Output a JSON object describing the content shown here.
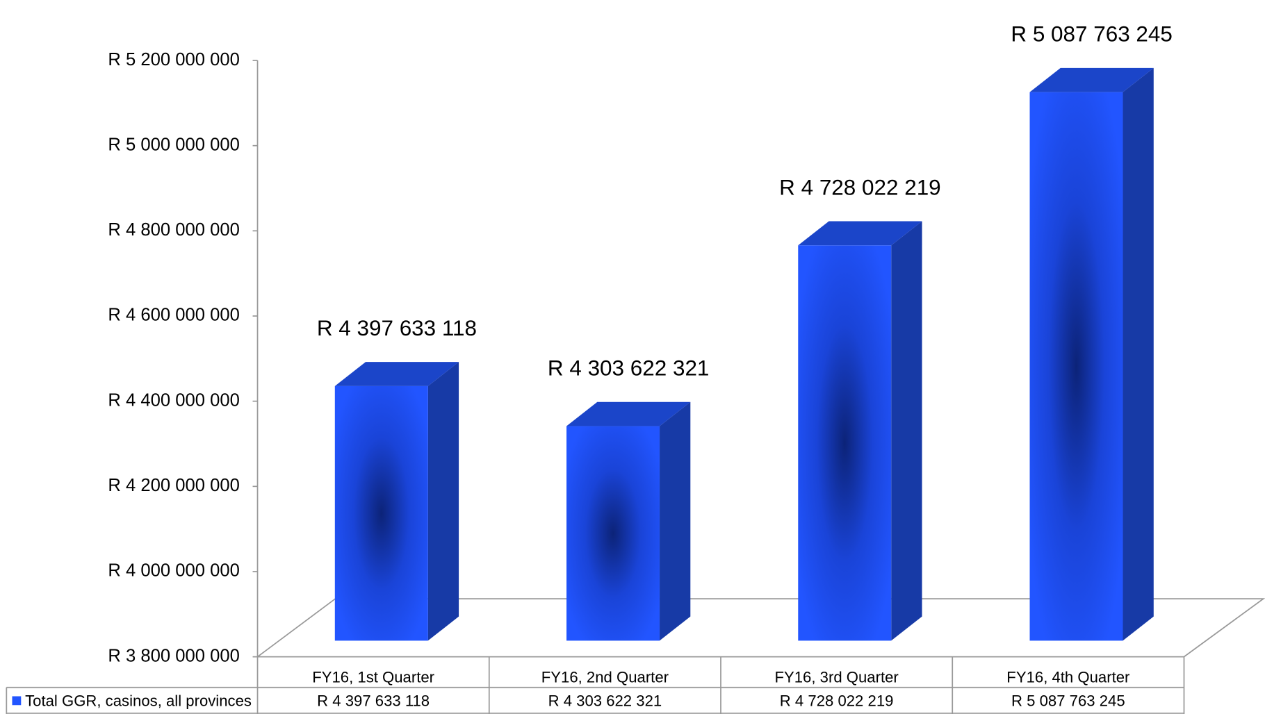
{
  "chart_data": {
    "type": "bar3d",
    "categories": [
      "FY16, 1st Quarter",
      "FY16, 2nd Quarter",
      "FY16, 3rd Quarter",
      "FY16, 4th Quarter"
    ],
    "series": [
      {
        "name": "Total GGR, casinos, all provinces",
        "color": "#2255ff",
        "values": [
          4397633118,
          4303622321,
          4728022219,
          5087763245
        ],
        "value_labels": [
          "R 4 397 633 118",
          "R 4 303 622 321",
          "R 4 728 022 219",
          "R 5 087 763 245"
        ]
      }
    ],
    "ylim": [
      3800000000,
      5200000000
    ],
    "yticks": [
      {
        "value": 3800000000,
        "label": "R 3 800 000 000"
      },
      {
        "value": 4000000000,
        "label": "R 4 000 000 000"
      },
      {
        "value": 4200000000,
        "label": "R 4 200 000 000"
      },
      {
        "value": 4400000000,
        "label": "R 4 400 000 000"
      },
      {
        "value": 4600000000,
        "label": "R 4 600 000 000"
      },
      {
        "value": 4800000000,
        "label": "R 4 800 000 000"
      },
      {
        "value": 5000000000,
        "label": "R 5 000 000 000"
      },
      {
        "value": 5200000000,
        "label": "R 5 200 000 000"
      }
    ],
    "data_table": true
  }
}
